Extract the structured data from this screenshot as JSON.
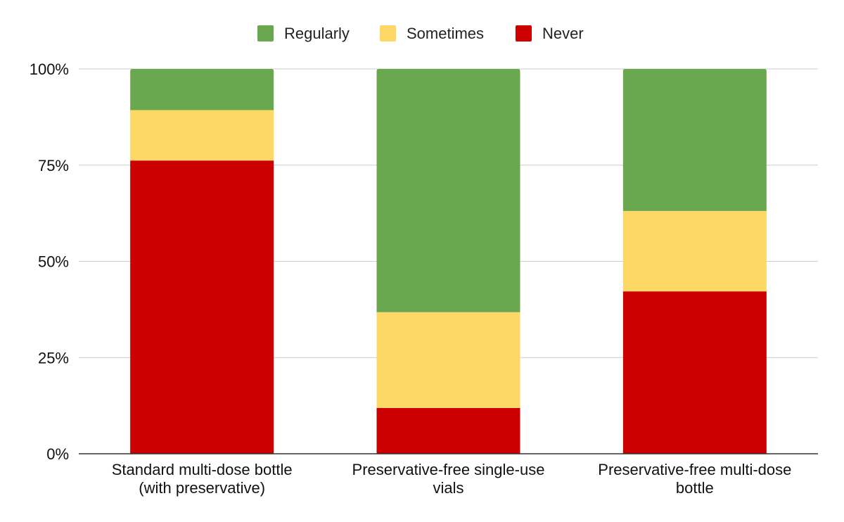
{
  "chart_data": {
    "type": "bar",
    "stacked": "percent",
    "title": "",
    "xlabel": "",
    "ylabel": "",
    "categories": [
      [
        "Standard multi-dose bottle",
        "(with preservative)"
      ],
      [
        "Preservative-free single-use",
        "vials"
      ],
      [
        "Preservative-free multi-dose",
        "bottle"
      ]
    ],
    "series": [
      {
        "name": "Never",
        "color": "#cc0000",
        "values": [
          76.2,
          11.9,
          42.2
        ]
      },
      {
        "name": "Sometimes",
        "color": "#fdd866",
        "values": [
          13.1,
          24.9,
          20.9
        ]
      },
      {
        "name": "Regularly",
        "color": "#6aa84f",
        "values": [
          10.7,
          63.2,
          36.9
        ]
      }
    ],
    "legend_order": [
      "Regularly",
      "Sometimes",
      "Never"
    ],
    "legend_position": "top",
    "ylim": [
      0,
      100
    ],
    "yticks": [
      0,
      25,
      50,
      75,
      100
    ],
    "ytick_labels": [
      "0%",
      "25%",
      "50%",
      "75%",
      "100%"
    ],
    "grid": true
  }
}
